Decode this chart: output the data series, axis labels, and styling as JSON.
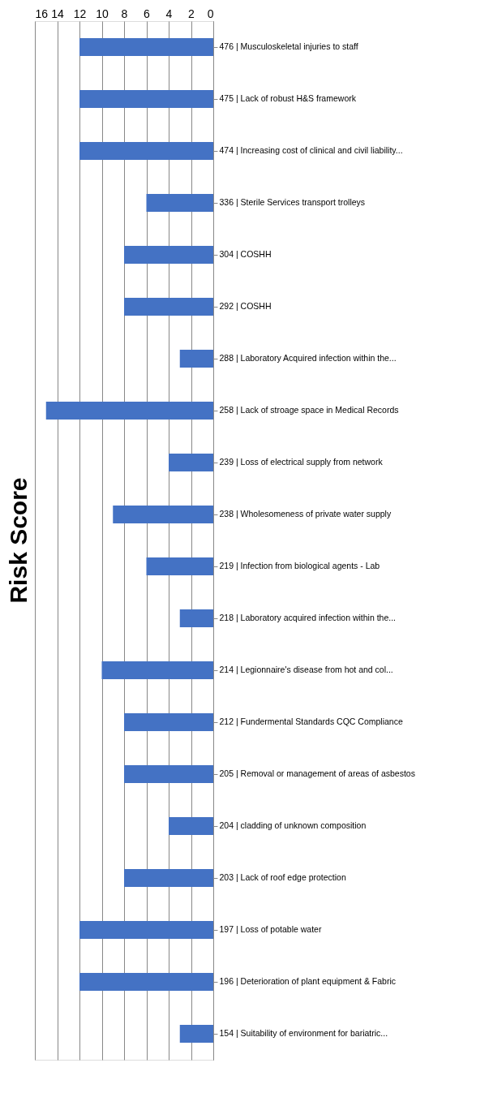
{
  "chart_data": {
    "type": "bar",
    "orientation": "horizontal",
    "title": "Risk Score",
    "categories": [
      "476 | Musculoskeletal injuries to staff",
      "475 | Lack of robust H&S framework",
      "474 | Increasing cost of clinical and civil liability...",
      "336 | Sterile Services transport trolleys",
      "304 | COSHH",
      "292 | COSHH",
      "288 | Laboratory Acquired infection within the...",
      "258 | Lack of stroage space in Medical Records",
      "239 | Loss of electrical supply from network",
      "238 | Wholesomeness of private water supply",
      "219 | Infection from biological agents - Lab",
      "218 | Laboratory acquired infection within the...",
      "214 | Legionnaire's disease from hot and col...",
      "212 | Fundermental Standards CQC Compliance",
      "205 | Removal or management of areas of asbestos",
      "204 | cladding of unknown composition",
      "203 | Lack of roof edge protection",
      "197 | Loss of potable water",
      "196 | Deterioration of plant equipment & Fabric",
      "154 | Suitability of environment for bariatric..."
    ],
    "values": [
      12,
      12,
      12,
      6,
      8,
      8,
      3,
      15,
      4,
      9,
      6,
      3,
      10,
      8,
      8,
      4,
      8,
      12,
      12,
      3
    ],
    "color": "#4472c4",
    "xlim": [
      16,
      0
    ],
    "xticks": [
      16,
      14,
      12,
      10,
      8,
      6,
      4,
      2,
      0
    ],
    "grid": "x"
  }
}
